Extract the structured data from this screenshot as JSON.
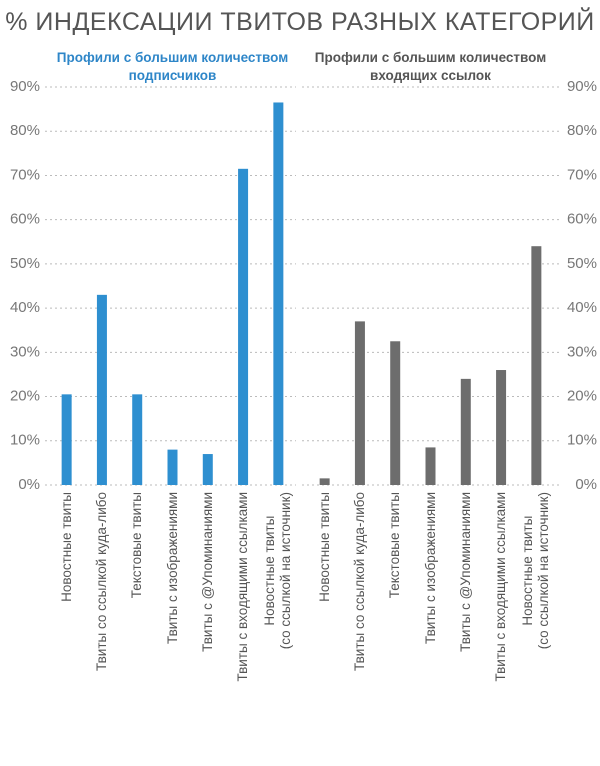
{
  "title": "% ИНДЕКСАЦИИ ТВИТОВ РАЗНЫХ КАТЕГОРИЙ",
  "chart_data": [
    {
      "type": "bar",
      "subtitle": "Профили с большим количеством\nподписчиков",
      "subtitle_color": "#2e86c8",
      "categories": [
        "Новостные твиты",
        "Твиты со ссылкой куда-либо",
        "Текстовые твиты",
        "Твиты с изображениями",
        "Твиты с @Упоминаниями",
        "Твиты с входящими ссылками",
        "Новостные твиты\n(со ссылкой на источник)"
      ],
      "values": [
        20.5,
        43,
        20.5,
        8,
        7,
        71.5,
        86.5
      ],
      "color": "#2e8fd0",
      "ylim": [
        0,
        90
      ],
      "yticks": [
        {
          "value": 0,
          "label": "0%"
        },
        {
          "value": 10,
          "label": "10%"
        },
        {
          "value": 20,
          "label": "20%"
        },
        {
          "value": 30,
          "label": "30%"
        },
        {
          "value": 40,
          "label": "40%"
        },
        {
          "value": 50,
          "label": "50%"
        },
        {
          "value": 60,
          "label": "60%"
        },
        {
          "value": 70,
          "label": "70%"
        },
        {
          "value": 80,
          "label": "80%"
        },
        {
          "value": 90,
          "label": "90%"
        }
      ],
      "y_axis_side": "left",
      "grid": true
    },
    {
      "type": "bar",
      "subtitle": "Профили с большим количеством\nвходящих ссылок",
      "subtitle_color": "#555555",
      "categories": [
        "Новостные твиты",
        "Твиты со ссылкой куда-либо",
        "Текстовые твиты",
        "Твиты с изображениями",
        "Твиты с @Упоминаниями",
        "Твиты с входящими ссылками",
        "Новостные твиты\n(со ссылкой на источник)"
      ],
      "values": [
        1.5,
        37,
        32.5,
        8.5,
        24,
        26,
        54
      ],
      "color": "#6d6d6d",
      "ylim": [
        0,
        90
      ],
      "yticks": [
        {
          "value": 0,
          "label": "0%"
        },
        {
          "value": 10,
          "label": "10%"
        },
        {
          "value": 20,
          "label": "20%"
        },
        {
          "value": 30,
          "label": "30%"
        },
        {
          "value": 40,
          "label": "40%"
        },
        {
          "value": 50,
          "label": "50%"
        },
        {
          "value": 60,
          "label": "60%"
        },
        {
          "value": 70,
          "label": "70%"
        },
        {
          "value": 80,
          "label": "80%"
        },
        {
          "value": 90,
          "label": "90%"
        }
      ],
      "y_axis_side": "right",
      "grid": true
    }
  ]
}
